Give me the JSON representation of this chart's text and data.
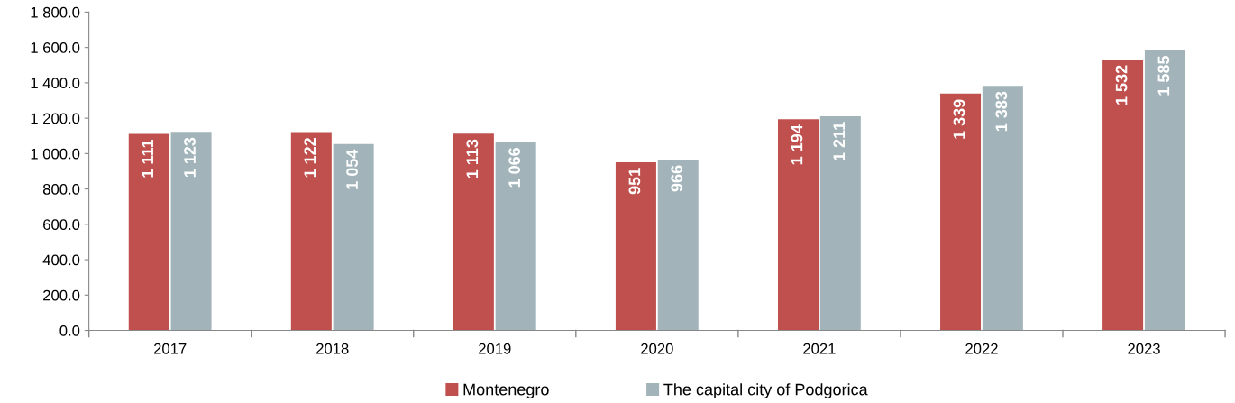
{
  "chart_data": {
    "type": "bar",
    "categories": [
      "2017",
      "2018",
      "2019",
      "2020",
      "2021",
      "2022",
      "2023"
    ],
    "series": [
      {
        "name": "Montenegro",
        "color": "#c0504d",
        "values": [
          1111,
          1122,
          1113,
          951,
          1194,
          1339,
          1532
        ],
        "value_labels": [
          "1 111",
          "1 122",
          "1 113",
          "951",
          "1 194",
          "1 339",
          "1 532"
        ]
      },
      {
        "name": "The capital city of Podgorica",
        "color": "#a2b4ba",
        "values": [
          1123,
          1054,
          1066,
          966,
          1211,
          1383,
          1585
        ],
        "value_labels": [
          "1 123",
          "1 054",
          "1 066",
          "966",
          "1 211",
          "1 383",
          "1 585"
        ]
      }
    ],
    "ylim": [
      0,
      1800
    ],
    "yticks": [
      {
        "value": 0,
        "label": "0.0"
      },
      {
        "value": 200,
        "label": "200.0"
      },
      {
        "value": 400,
        "label": "400.0"
      },
      {
        "value": 600,
        "label": "600.0"
      },
      {
        "value": 800,
        "label": "800.0"
      },
      {
        "value": 1000,
        "label": "1 000.0"
      },
      {
        "value": 1200,
        "label": "1 200.0"
      },
      {
        "value": 1400,
        "label": "1 400.0"
      },
      {
        "value": 1600,
        "label": "1 600.0"
      },
      {
        "value": 1800,
        "label": "1 800.0"
      }
    ],
    "grid": false,
    "legend": "bottom"
  }
}
